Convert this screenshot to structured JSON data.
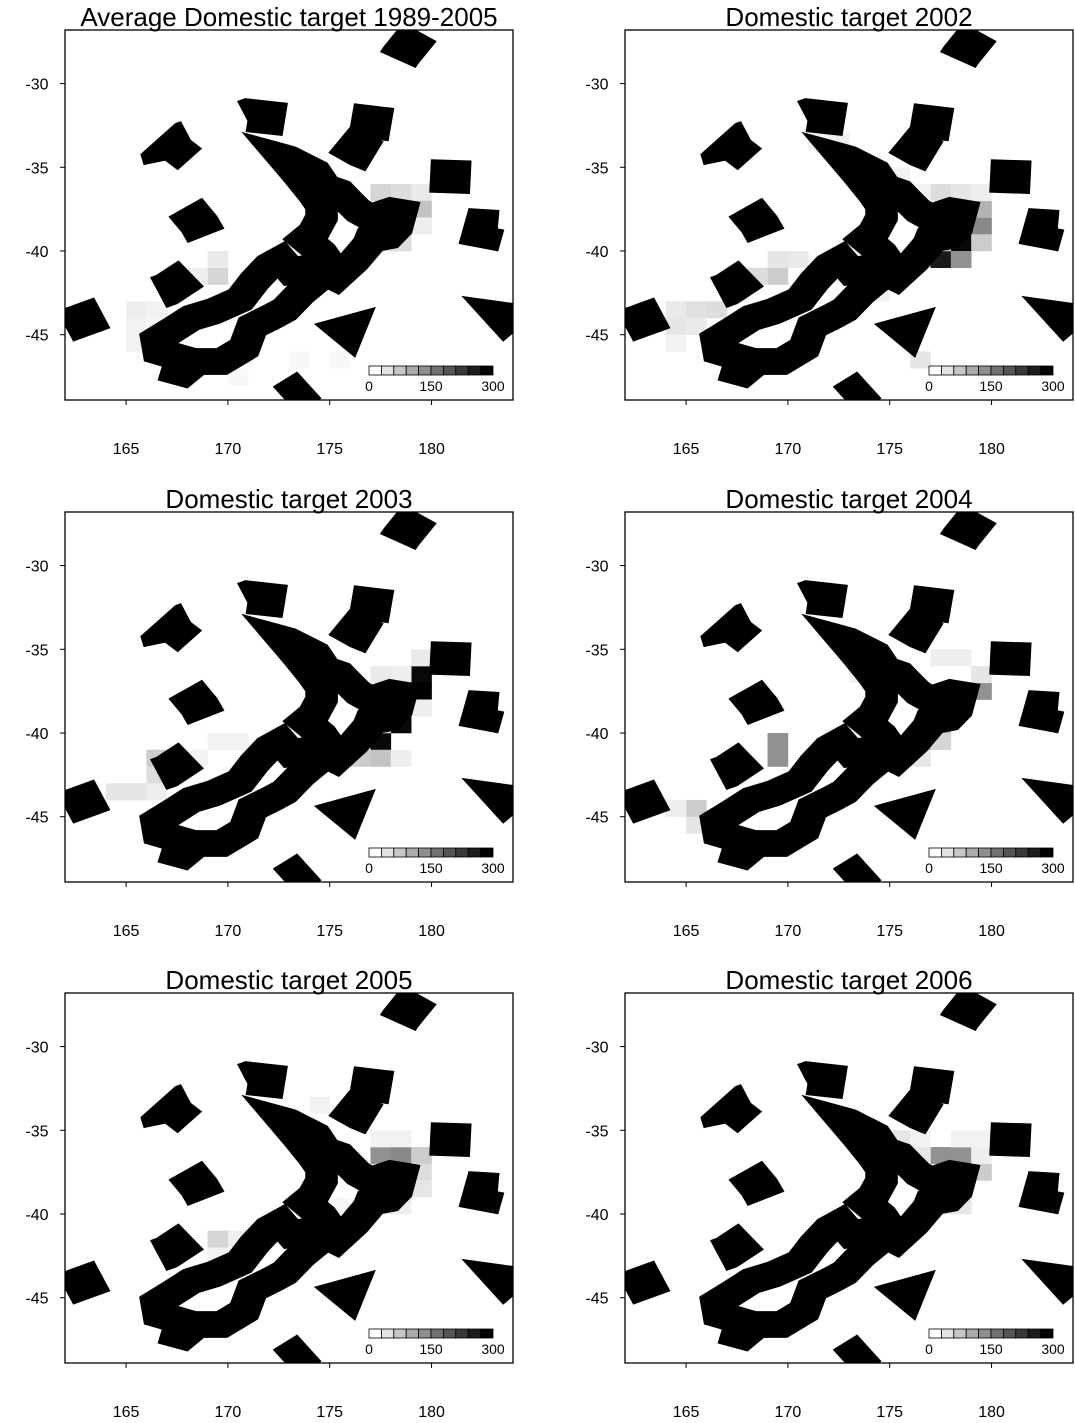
{
  "chart_data": [
    {
      "type": "heatmap",
      "title": "Average Domestic target 1989-2005",
      "xlim": [
        162,
        184
      ],
      "ylim": [
        -48.9,
        -26.8
      ],
      "xticks": [
        165,
        170,
        175,
        180
      ],
      "yticks": [
        -30,
        -35,
        -40,
        -45
      ],
      "colorbar": {
        "lim": [
          0,
          300
        ],
        "ticks": [
          0,
          150,
          300
        ]
      },
      "cells": {
        "lon": [
          177,
          178,
          179,
          178,
          179,
          178,
          177,
          178,
          179,
          169,
          169,
          168,
          166,
          165,
          165,
          165,
          166,
          167,
          173,
          174,
          167,
          173,
          175,
          170
        ],
        "lat": [
          -37,
          -37,
          -37,
          -38,
          -38,
          -39,
          -40,
          -40,
          -39,
          -42,
          -41,
          -42,
          -44,
          -44,
          -45,
          -46,
          -45,
          -43,
          -36,
          -36,
          -47,
          -47,
          -47,
          -48
        ],
        "values": [
          50,
          40,
          25,
          30,
          70,
          70,
          45,
          40,
          20,
          50,
          25,
          20,
          15,
          20,
          15,
          15,
          12,
          10,
          10,
          10,
          8,
          8,
          8,
          8
        ]
      }
    },
    {
      "type": "heatmap",
      "title": "Domestic target 2002",
      "xlim": [
        162,
        184
      ],
      "ylim": [
        -48.9,
        -26.8
      ],
      "xticks": [
        165,
        170,
        175,
        180
      ],
      "yticks": [
        -30,
        -35,
        -40,
        -45
      ],
      "colorbar": {
        "lim": [
          0,
          300
        ],
        "ticks": [
          0,
          150,
          300
        ]
      },
      "cells": {
        "lon": [
          178,
          177,
          178,
          177,
          178,
          179,
          179,
          178,
          179,
          177,
          178,
          179,
          176,
          175,
          172,
          171,
          169,
          168,
          169,
          170,
          167,
          166,
          165,
          164,
          164,
          165,
          164,
          176,
          174
        ],
        "lat": [
          -40,
          -41,
          -41,
          -40,
          -39,
          -39,
          -38,
          -38,
          -40,
          -37,
          -37,
          -37,
          -37,
          -36,
          -34,
          -34,
          -42,
          -42,
          -41,
          -41,
          -43,
          -44,
          -44,
          -44,
          -45,
          -45,
          -46,
          -47,
          -43
        ],
        "values": [
          290,
          270,
          130,
          80,
          110,
          140,
          90,
          50,
          60,
          40,
          30,
          20,
          15,
          15,
          20,
          15,
          60,
          40,
          30,
          25,
          20,
          40,
          35,
          25,
          30,
          25,
          15,
          30,
          15
        ]
      }
    },
    {
      "type": "heatmap",
      "title": "Domestic target 2003",
      "xlim": [
        162,
        184
      ],
      "ylim": [
        -48.9,
        -26.8
      ],
      "xticks": [
        165,
        170,
        175,
        180
      ],
      "yticks": [
        -30,
        -35,
        -40,
        -45
      ],
      "colorbar": {
        "lim": [
          0,
          300
        ],
        "ticks": [
          0,
          150,
          300
        ]
      },
      "cells": {
        "lon": [
          179,
          179,
          178,
          178,
          178,
          177,
          177,
          177,
          176,
          178,
          179,
          177,
          178,
          179,
          166,
          166,
          165,
          164,
          166,
          167,
          168,
          169,
          170,
          171,
          172
        ],
        "lat": [
          -38,
          -37,
          -38,
          -39,
          -40,
          -41,
          -40,
          -42,
          -42,
          -42,
          -39,
          -37,
          -37,
          -36,
          -42,
          -43,
          -44,
          -44,
          -44,
          -43,
          -42,
          -41,
          -41,
          -42,
          -41
        ],
        "values": [
          300,
          290,
          120,
          280,
          290,
          290,
          60,
          70,
          60,
          20,
          20,
          25,
          20,
          25,
          60,
          40,
          30,
          30,
          20,
          10,
          15,
          15,
          15,
          10,
          10
        ]
      }
    },
    {
      "type": "heatmap",
      "title": "Domestic target 2004",
      "xlim": [
        162,
        184
      ],
      "ylim": [
        -48.9,
        -26.8
      ],
      "xticks": [
        165,
        170,
        175,
        180
      ],
      "yticks": [
        -30,
        -35,
        -40,
        -45
      ],
      "colorbar": {
        "lim": [
          0,
          300
        ],
        "ticks": [
          0,
          150,
          300
        ]
      },
      "cells": {
        "lon": [
          178,
          178,
          179,
          179,
          177,
          176,
          177,
          175,
          176,
          169,
          169,
          165,
          165,
          164,
          167,
          177,
          178,
          173,
          175
        ],
        "lat": [
          -39,
          -38,
          -38,
          -37,
          -40,
          -41,
          -41,
          -42,
          -42,
          -42,
          -41,
          -45,
          -46,
          -45,
          -43,
          -36,
          -36,
          -37,
          -37
        ],
        "values": [
          300,
          110,
          130,
          30,
          80,
          110,
          50,
          60,
          30,
          130,
          130,
          60,
          30,
          20,
          15,
          20,
          20,
          15,
          15
        ]
      }
    },
    {
      "type": "heatmap",
      "title": "Domestic target 2005",
      "xlim": [
        162,
        184
      ],
      "ylim": [
        -48.9,
        -26.8
      ],
      "xticks": [
        165,
        170,
        175,
        180
      ],
      "yticks": [
        -30,
        -35,
        -40,
        -45
      ],
      "colorbar": {
        "lim": [
          0,
          300
        ],
        "ticks": [
          0,
          150,
          300
        ]
      },
      "cells": {
        "lon": [
          177,
          178,
          179,
          179,
          179,
          177,
          178,
          177,
          178,
          177,
          178,
          174,
          169,
          170,
          169,
          175
        ],
        "lat": [
          -37,
          -37,
          -37,
          -38,
          -39,
          -38,
          -38,
          -40,
          -40,
          -36,
          -36,
          -34,
          -42,
          -42,
          -43,
          -40
        ],
        "values": [
          130,
          140,
          60,
          40,
          30,
          30,
          40,
          20,
          20,
          15,
          15,
          15,
          50,
          20,
          15,
          10
        ]
      }
    },
    {
      "type": "heatmap",
      "title": "Domestic target 2006",
      "xlim": [
        162,
        184
      ],
      "ylim": [
        -48.9,
        -26.8
      ],
      "xticks": [
        165,
        170,
        175,
        180
      ],
      "yticks": [
        -30,
        -35,
        -40,
        -45
      ],
      "colorbar": {
        "lim": [
          0,
          300
        ],
        "ticks": [
          0,
          150,
          300
        ]
      },
      "cells": {
        "lon": [
          177,
          178,
          179,
          178,
          178,
          177,
          179,
          176,
          175,
          176,
          178,
          179,
          172,
          171,
          167
        ],
        "lat": [
          -37,
          -37,
          -38,
          -39,
          -40,
          -40,
          -37,
          -37,
          -36,
          -36,
          -36,
          -36,
          -41,
          -42,
          -43
        ],
        "values": [
          130,
          130,
          60,
          60,
          30,
          20,
          20,
          30,
          30,
          15,
          15,
          15,
          15,
          10,
          10
        ]
      }
    }
  ]
}
